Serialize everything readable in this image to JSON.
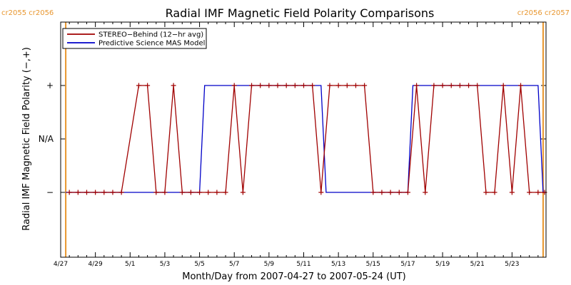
{
  "chart_data": {
    "type": "line",
    "title": "Radial IMF Magnetic Field Polarity Comparisons",
    "xlabel": "Month/Day from 2007-04-27 to 2007-05-24 (UT)",
    "ylabel": "Radial IMF Magnetic Field Polarity (−,+)",
    "x_range": [
      "2007-04-27",
      "2007-05-24T23:00"
    ],
    "y_categories": [
      "−",
      "N/A",
      "+"
    ],
    "x_tick_labels": [
      {
        "date": "2007-04-27",
        "label": "4/27"
      },
      {
        "date": "2007-04-29",
        "label": "4/29"
      },
      {
        "date": "2007-05-01",
        "label": "5/1"
      },
      {
        "date": "2007-05-03",
        "label": "5/3"
      },
      {
        "date": "2007-05-05",
        "label": "5/5"
      },
      {
        "date": "2007-05-07",
        "label": "5/7"
      },
      {
        "date": "2007-05-09",
        "label": "5/9"
      },
      {
        "date": "2007-05-11",
        "label": "5/11"
      },
      {
        "date": "2007-05-13",
        "label": "5/13"
      },
      {
        "date": "2007-05-15",
        "label": "5/15"
      },
      {
        "date": "2007-05-17",
        "label": "5/17"
      },
      {
        "date": "2007-05-19",
        "label": "5/19"
      },
      {
        "date": "2007-05-21",
        "label": "5/21"
      },
      {
        "date": "2007-05-23",
        "label": "5/23"
      }
    ],
    "carrington_markers": [
      {
        "date": "2007-04-27T07:00",
        "label": "cr2055 cr2056",
        "side": "left"
      },
      {
        "date": "2007-05-24T19:00",
        "label": "cr2056 cr2057",
        "side": "right"
      }
    ],
    "legend_position": "top-left",
    "series": [
      {
        "name": "STEREO−Behind (12−hr avg)",
        "color": "#a00000",
        "marker": "+",
        "points": [
          [
            "2007-04-27T12:00",
            "−"
          ],
          [
            "2007-04-28T00:00",
            "−"
          ],
          [
            "2007-04-28T12:00",
            "−"
          ],
          [
            "2007-04-29T00:00",
            "−"
          ],
          [
            "2007-04-29T12:00",
            "−"
          ],
          [
            "2007-04-30T00:00",
            "−"
          ],
          [
            "2007-04-30T12:00",
            "−"
          ],
          [
            "2007-05-01T12:00",
            "+"
          ],
          [
            "2007-05-02T00:00",
            "+"
          ],
          [
            "2007-05-02T12:00",
            "−"
          ],
          [
            "2007-05-03T00:00",
            "−"
          ],
          [
            "2007-05-03T12:00",
            "+"
          ],
          [
            "2007-05-04T00:00",
            "−"
          ],
          [
            "2007-05-04T12:00",
            "−"
          ],
          [
            "2007-05-05T00:00",
            "−"
          ],
          [
            "2007-05-05T12:00",
            "−"
          ],
          [
            "2007-05-06T00:00",
            "−"
          ],
          [
            "2007-05-06T12:00",
            "−"
          ],
          [
            "2007-05-07T00:00",
            "+"
          ],
          [
            "2007-05-07T12:00",
            "−"
          ],
          [
            "2007-05-08T00:00",
            "+"
          ],
          [
            "2007-05-08T12:00",
            "+"
          ],
          [
            "2007-05-09T00:00",
            "+"
          ],
          [
            "2007-05-09T12:00",
            "+"
          ],
          [
            "2007-05-10T00:00",
            "+"
          ],
          [
            "2007-05-10T12:00",
            "+"
          ],
          [
            "2007-05-11T00:00",
            "+"
          ],
          [
            "2007-05-11T12:00",
            "+"
          ],
          [
            "2007-05-12T00:00",
            "−"
          ],
          [
            "2007-05-12T12:00",
            "+"
          ],
          [
            "2007-05-13T00:00",
            "+"
          ],
          [
            "2007-05-13T12:00",
            "+"
          ],
          [
            "2007-05-14T00:00",
            "+"
          ],
          [
            "2007-05-14T12:00",
            "+"
          ],
          [
            "2007-05-15T00:00",
            "−"
          ],
          [
            "2007-05-15T12:00",
            "−"
          ],
          [
            "2007-05-16T00:00",
            "−"
          ],
          [
            "2007-05-16T12:00",
            "−"
          ],
          [
            "2007-05-17T00:00",
            "−"
          ],
          [
            "2007-05-17T12:00",
            "+"
          ],
          [
            "2007-05-18T00:00",
            "−"
          ],
          [
            "2007-05-18T12:00",
            "+"
          ],
          [
            "2007-05-19T00:00",
            "+"
          ],
          [
            "2007-05-19T12:00",
            "+"
          ],
          [
            "2007-05-20T00:00",
            "+"
          ],
          [
            "2007-05-20T12:00",
            "+"
          ],
          [
            "2007-05-21T00:00",
            "+"
          ],
          [
            "2007-05-21T12:00",
            "−"
          ],
          [
            "2007-05-22T00:00",
            "−"
          ],
          [
            "2007-05-22T12:00",
            "+"
          ],
          [
            "2007-05-23T00:00",
            "−"
          ],
          [
            "2007-05-23T12:00",
            "+"
          ],
          [
            "2007-05-24T00:00",
            "−"
          ],
          [
            "2007-05-24T12:00",
            "−"
          ],
          [
            "2007-05-24T21:00",
            "−"
          ]
        ]
      },
      {
        "name": "Predictive Science MAS Model",
        "color": "#0000c8",
        "marker": "none",
        "points": [
          [
            "2007-04-27T07:00",
            "−"
          ],
          [
            "2007-05-05T00:00",
            "−"
          ],
          [
            "2007-05-05T07:00",
            "+"
          ],
          [
            "2007-05-12T00:00",
            "+"
          ],
          [
            "2007-05-12T07:00",
            "−"
          ],
          [
            "2007-05-17T00:00",
            "−"
          ],
          [
            "2007-05-17T07:00",
            "+"
          ],
          [
            "2007-05-24T12:00",
            "+"
          ],
          [
            "2007-05-24T19:00",
            "−"
          ],
          [
            "2007-05-24T23:00",
            "−"
          ]
        ]
      }
    ]
  }
}
